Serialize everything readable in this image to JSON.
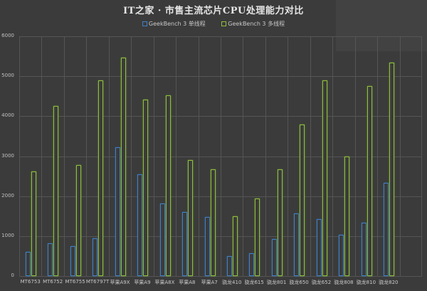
{
  "chart_data": {
    "type": "bar",
    "title": "IT之家 · 市售主流芯片CPU处理能力对比",
    "xlabel": "",
    "ylabel": "",
    "ylim": [
      0,
      6000
    ],
    "yticks": [
      0,
      1000,
      2000,
      3000,
      4000,
      5000,
      6000
    ],
    "grid": true,
    "legend_position": "top",
    "categories": [
      "MT6753",
      "MT6752",
      "MT6755",
      "MT6797T",
      "苹果A9X",
      "苹果A9",
      "苹果A8X",
      "苹果A8",
      "苹果A7",
      "骁龙410",
      "骁龙615",
      "骁龙801",
      "骁龙650",
      "骁龙652",
      "骁龙808",
      "骁龙810",
      "骁龙820"
    ],
    "series": [
      {
        "name": "GeekBench 3 单线程",
        "color": "#3f80c8",
        "values": [
          600,
          820,
          750,
          940,
          3230,
          2540,
          1810,
          1610,
          1480,
          490,
          570,
          930,
          1560,
          1420,
          1030,
          1340,
          2340
        ]
      },
      {
        "name": "GeekBench 3 多线程",
        "color": "#8dc03a",
        "values": [
          2620,
          4250,
          2770,
          4890,
          5470,
          4420,
          4530,
          2900,
          2675,
          1490,
          1940,
          2670,
          3790,
          4890,
          3000,
          4750,
          5350
        ]
      }
    ]
  },
  "colors": {
    "background": "#3b3b3b",
    "grid": "#555555",
    "single": "#3f80c8",
    "multi": "#8dc03a"
  }
}
